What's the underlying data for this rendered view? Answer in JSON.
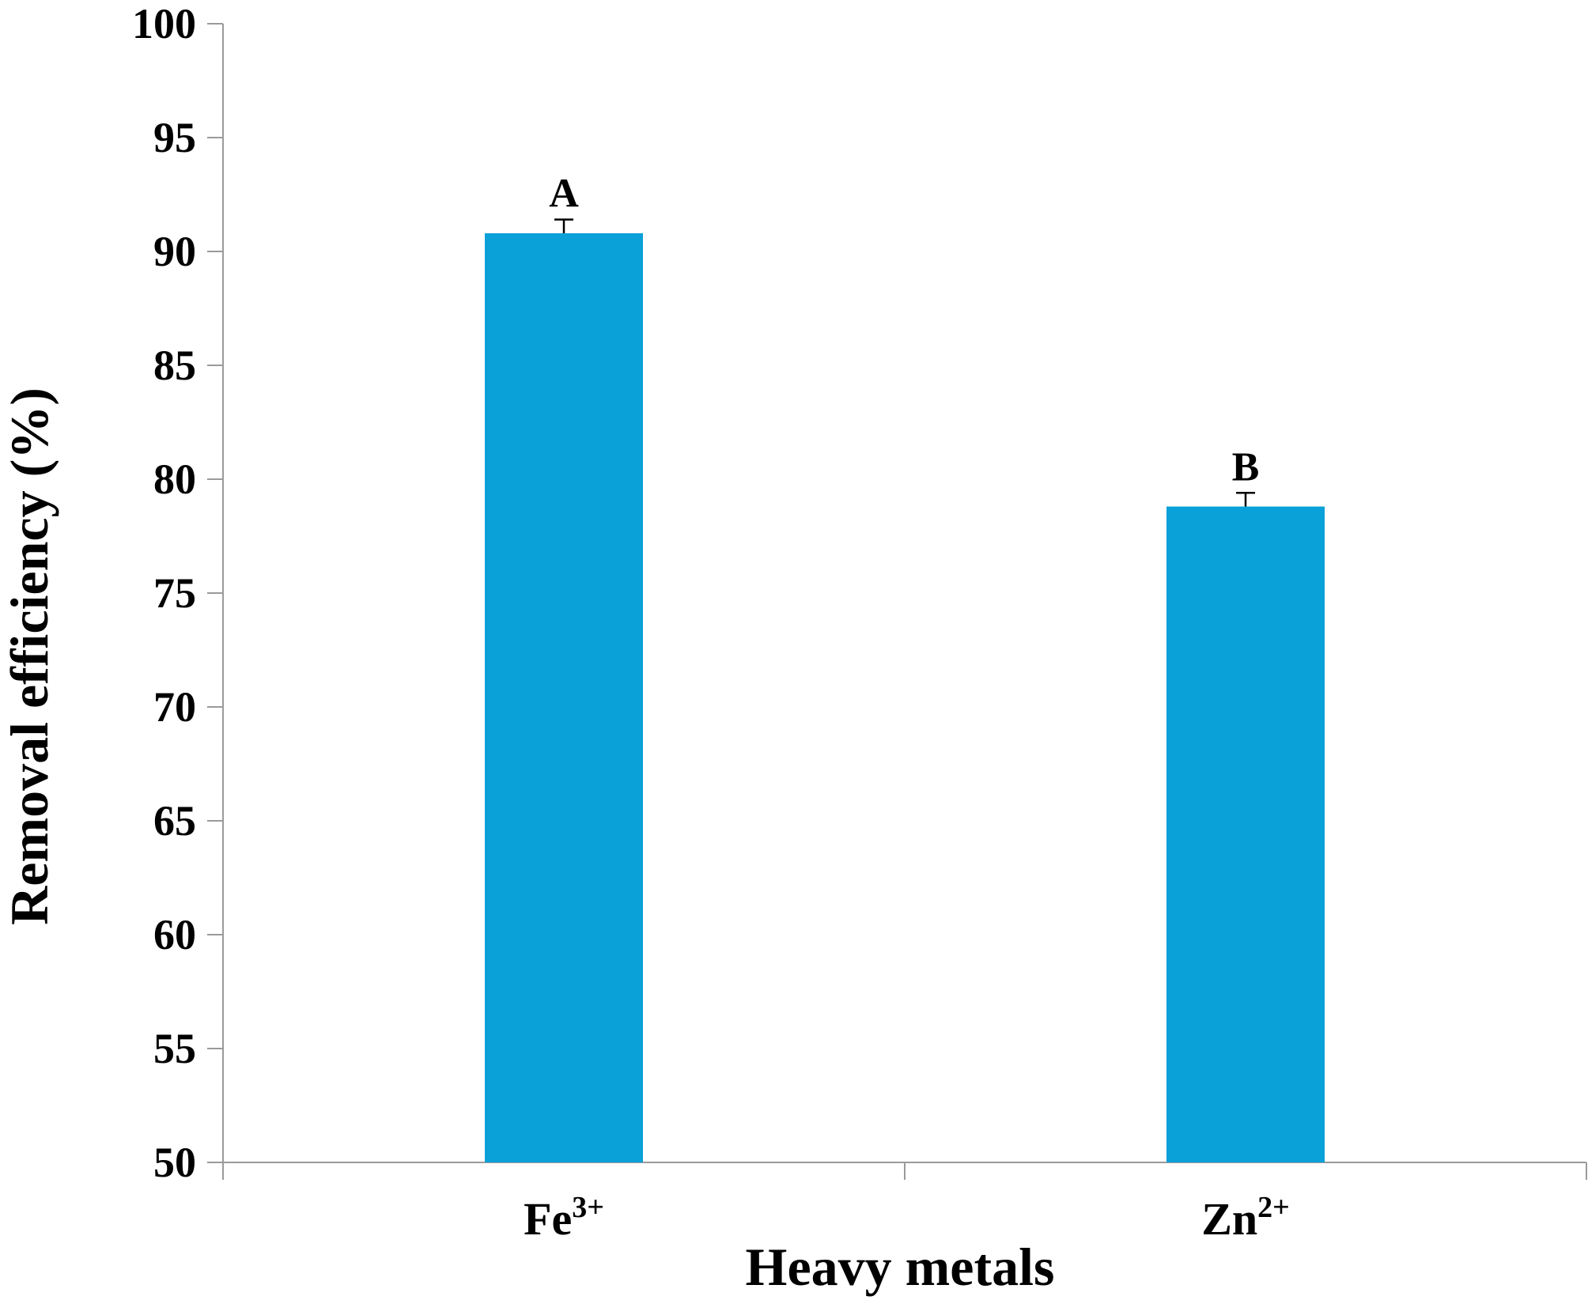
{
  "chart_data": {
    "type": "bar",
    "categories": [
      {
        "base": "Fe",
        "sup": "3+"
      },
      {
        "base": "Zn",
        "sup": "2+"
      }
    ],
    "values": [
      90.8,
      78.8
    ],
    "errors": [
      0.6,
      0.6
    ],
    "significance_letters": [
      "A",
      "B"
    ],
    "xlabel": "Heavy metals",
    "ylabel": "Removal efficiency (%)",
    "ylim": [
      50,
      100
    ],
    "yticks": [
      50,
      55,
      60,
      65,
      70,
      75,
      80,
      85,
      90,
      95,
      100
    ],
    "grid": false,
    "legend": "none",
    "bar_color": "#0aa0d8",
    "axis_color": "#9a9a9a"
  }
}
